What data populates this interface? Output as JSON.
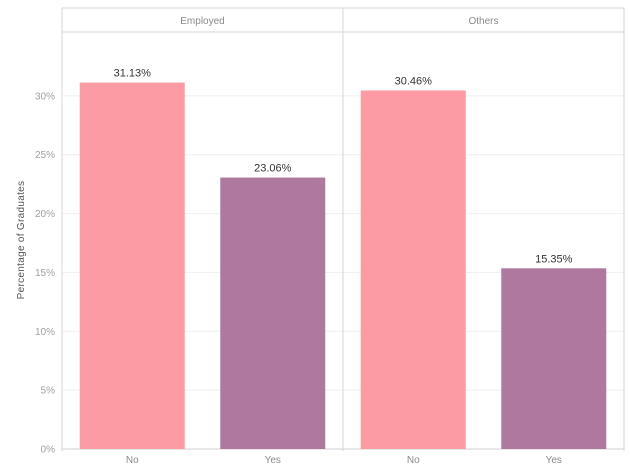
{
  "chart_data": {
    "type": "bar",
    "ylabel": "Percentage of Graduates",
    "ylim": [
      0,
      35
    ],
    "yticks": [
      0,
      5,
      10,
      15,
      20,
      25,
      30
    ],
    "ytick_labels": [
      "0%",
      "5%",
      "10%",
      "15%",
      "20%",
      "25%",
      "30%"
    ],
    "grid": true,
    "categories": [
      "No",
      "Yes"
    ],
    "colors": {
      "No": "#fc9ba4",
      "Yes": "#af799f"
    },
    "panels": [
      {
        "name": "Employed",
        "values": [
          31.13,
          23.06
        ],
        "labels": [
          "31.13%",
          "23.06%"
        ]
      },
      {
        "name": "Others",
        "values": [
          30.46,
          15.35
        ],
        "labels": [
          "30.46%",
          "15.35%"
        ]
      }
    ]
  }
}
